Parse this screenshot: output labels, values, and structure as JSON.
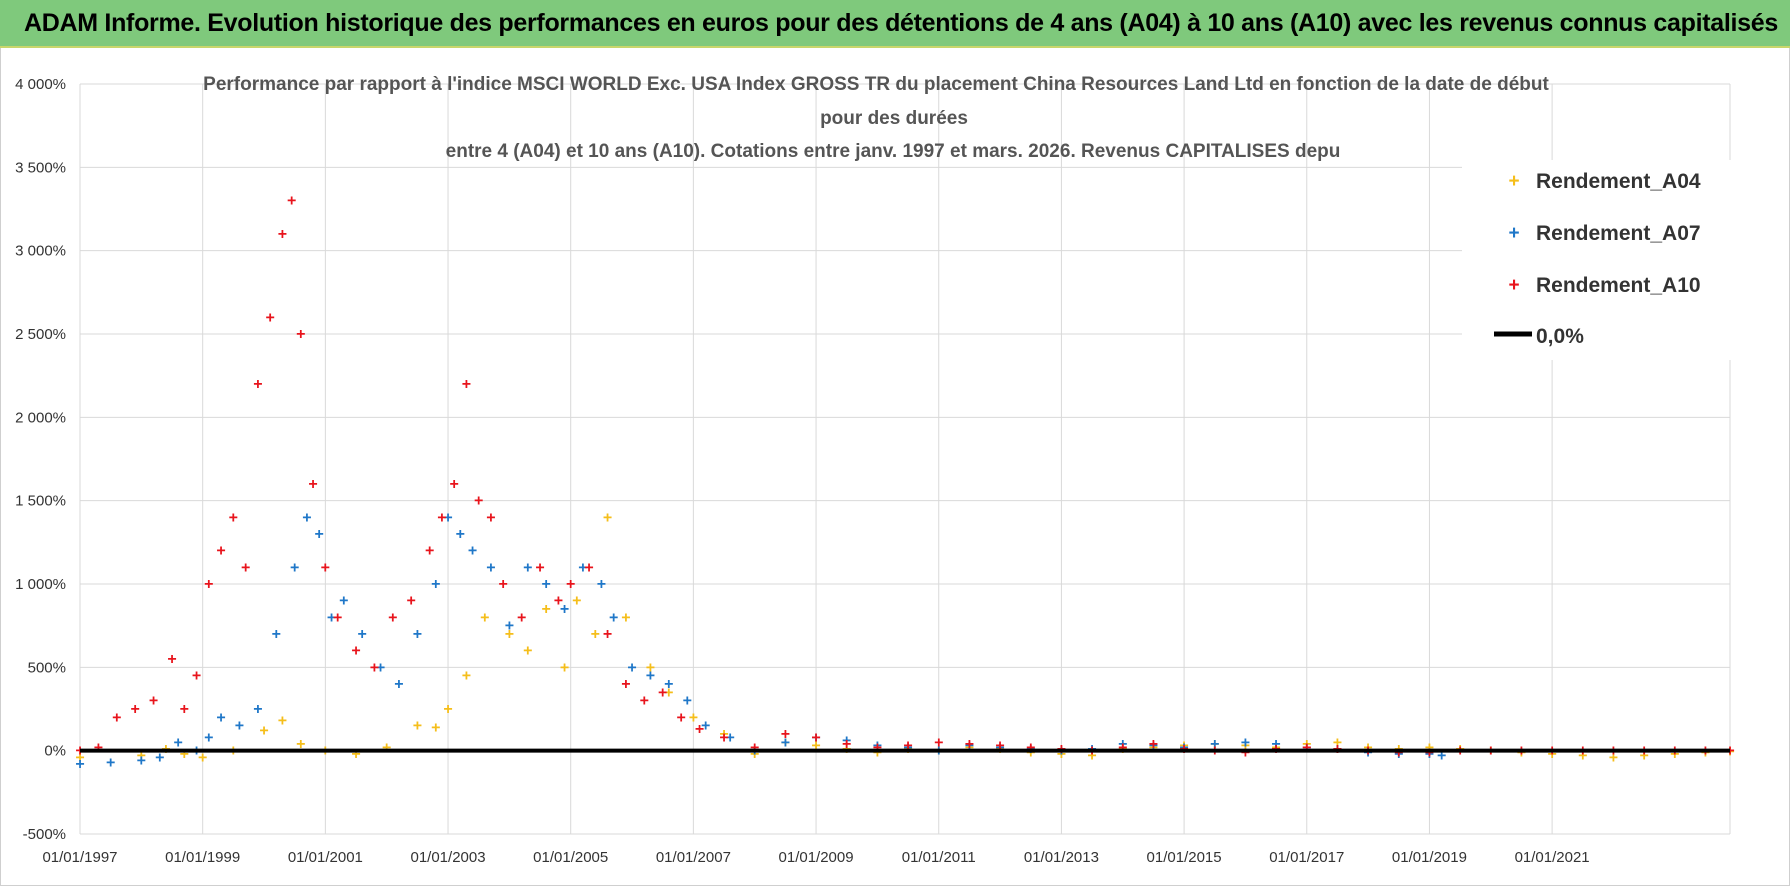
{
  "banner": {
    "title": "ADAM Informe. Evolution historique des performances en euros pour des détentions de 4 ans (A04) à 10 ans (A10) avec les revenus connus capitalisés"
  },
  "chart_data": {
    "type": "scatter",
    "title_lines": [
      "Performance par rapport à l'indice MSCI WORLD Exc. USA Index GROSS TR  du placement China Resources Land Ltd en fonction de la date de début",
      "pour des durées",
      "entre 4 (A04) et 10 ans (A10). Cotations entre janv. 1997 et mars. 2026. Revenus CAPITALISES depu"
    ],
    "x_range": [
      1997.0,
      2023.9
    ],
    "ylim": [
      -500,
      4000
    ],
    "y_ticks": [
      -500,
      0,
      500,
      1000,
      1500,
      2000,
      2500,
      3000,
      3500,
      4000
    ],
    "y_tick_labels": [
      "-500%",
      "0%",
      "500%",
      "1 000%",
      "1 500%",
      "2 000%",
      "2 500%",
      "3 000%",
      "3 500%",
      "4 000%"
    ],
    "x_tick_years": [
      1997,
      1999,
      2001,
      2003,
      2005,
      2007,
      2009,
      2011,
      2013,
      2015,
      2017,
      2019,
      2021
    ],
    "x_tick_labels": [
      "01/01/1997",
      "01/01/1999",
      "01/01/2001",
      "01/01/2003",
      "01/01/2005",
      "01/01/2007",
      "01/01/2009",
      "01/01/2011",
      "01/01/2013",
      "01/01/2015",
      "01/01/2017",
      "01/01/2019",
      "01/01/2021"
    ],
    "grid": true,
    "legend_position": "top-right",
    "series": [
      {
        "name": "Rendement_A04",
        "color": "#f5be1a",
        "x": [
          1997.0,
          1998.0,
          1998.4,
          1998.7,
          1999.0,
          1999.5,
          2000.0,
          2000.3,
          2000.6,
          2001.0,
          2001.5,
          2002.0,
          2002.5,
          2002.8,
          2003.0,
          2003.3,
          2003.6,
          2004.0,
          2004.3,
          2004.6,
          2004.9,
          2005.1,
          2005.4,
          2005.6,
          2005.9,
          2006.3,
          2006.6,
          2007.0,
          2007.5,
          2008.0,
          2008.5,
          2009.0,
          2009.5,
          2010.0,
          2010.5,
          2011.0,
          2011.5,
          2012.0,
          2012.5,
          2013.0,
          2013.5,
          2014.0,
          2014.5,
          2015.0,
          2015.5,
          2016.0,
          2016.5,
          2017.0,
          2017.5,
          2018.0,
          2018.5,
          2019.0,
          2019.5,
          2020.0,
          2020.5,
          2021.0,
          2021.5,
          2022.0,
          2022.5,
          2023.0,
          2023.5,
          2023.9
        ],
        "values": [
          -40,
          -30,
          10,
          -20,
          -40,
          0,
          120,
          180,
          40,
          0,
          -20,
          20,
          150,
          140,
          250,
          450,
          800,
          700,
          600,
          850,
          500,
          900,
          700,
          1400,
          800,
          500,
          350,
          200,
          100,
          -20,
          50,
          30,
          10,
          -10,
          10,
          0,
          20,
          10,
          -10,
          -20,
          -30,
          10,
          20,
          30,
          40,
          30,
          20,
          40,
          50,
          20,
          10,
          20,
          10,
          0,
          -10,
          -20,
          -30,
          -40,
          -30,
          -20,
          -10,
          -5
        ]
      },
      {
        "name": "Rendement_A07",
        "color": "#1f77c8",
        "x": [
          1997.0,
          1997.5,
          1998.0,
          1998.3,
          1998.6,
          1998.9,
          1999.1,
          1999.3,
          1999.6,
          1999.9,
          2000.2,
          2000.5,
          2000.7,
          2000.9,
          2001.1,
          2001.3,
          2001.6,
          2001.9,
          2002.2,
          2002.5,
          2002.8,
          2003.0,
          2003.2,
          2003.4,
          2003.7,
          2004.0,
          2004.3,
          2004.6,
          2004.9,
          2005.2,
          2005.5,
          2005.7,
          2006.0,
          2006.3,
          2006.6,
          2006.9,
          2007.2,
          2007.6,
          2008.0,
          2008.5,
          2009.0,
          2009.5,
          2010.0,
          2010.5,
          2011.0,
          2011.5,
          2012.0,
          2012.5,
          2013.0,
          2013.5,
          2014.0,
          2014.5,
          2015.0,
          2015.5,
          2016.0,
          2016.5,
          2017.0,
          2017.5,
          2018.0,
          2018.5,
          2019.0,
          2019.2
        ],
        "values": [
          -80,
          -70,
          -60,
          -40,
          50,
          0,
          80,
          200,
          150,
          250,
          700,
          1100,
          1400,
          1300,
          800,
          900,
          700,
          500,
          400,
          700,
          1000,
          1400,
          1300,
          1200,
          1100,
          750,
          1100,
          1000,
          850,
          1100,
          1000,
          800,
          500,
          450,
          400,
          300,
          150,
          80,
          0,
          50,
          80,
          60,
          30,
          20,
          0,
          30,
          20,
          10,
          0,
          10,
          40,
          30,
          20,
          40,
          50,
          40,
          20,
          10,
          -10,
          -20,
          -20,
          -30
        ]
      },
      {
        "name": "Rendement_A10",
        "color": "#e8141c",
        "x": [
          1997.0,
          1997.3,
          1997.6,
          1997.9,
          1998.2,
          1998.5,
          1998.7,
          1998.9,
          1999.1,
          1999.3,
          1999.5,
          1999.7,
          1999.9,
          2000.1,
          2000.3,
          2000.45,
          2000.6,
          2000.8,
          2001.0,
          2001.2,
          2001.5,
          2001.8,
          2002.1,
          2002.4,
          2002.7,
          2002.9,
          2003.1,
          2003.3,
          2003.5,
          2003.7,
          2003.9,
          2004.2,
          2004.5,
          2004.8,
          2005.0,
          2005.3,
          2005.6,
          2005.9,
          2006.2,
          2006.5,
          2006.8,
          2007.1,
          2007.5,
          2008.0,
          2008.5,
          2009.0,
          2009.5,
          2010.0,
          2010.5,
          2011.0,
          2011.5,
          2012.0,
          2012.5,
          2013.0,
          2013.5,
          2014.0,
          2014.5,
          2015.0,
          2015.5,
          2016.0,
          2016.5,
          2017.0,
          2017.5,
          2018.0,
          2018.5,
          2019.0,
          2019.5,
          2020.0,
          2020.5,
          2021.0,
          2021.5,
          2022.0,
          2022.5,
          2023.0,
          2023.5,
          2023.9
        ],
        "values": [
          0,
          20,
          200,
          250,
          300,
          550,
          250,
          450,
          1000,
          1200,
          1400,
          1100,
          2200,
          2600,
          3100,
          3300,
          2500,
          1600,
          1100,
          800,
          600,
          500,
          800,
          900,
          1200,
          1400,
          1600,
          2200,
          1500,
          1400,
          1000,
          800,
          1100,
          900,
          1000,
          1100,
          700,
          400,
          300,
          350,
          200,
          130,
          80,
          20,
          100,
          80,
          40,
          20,
          30,
          50,
          40,
          30,
          20,
          10,
          0,
          20,
          40,
          10,
          0,
          -10,
          10,
          20,
          10,
          0,
          -10,
          -10,
          0,
          0,
          0,
          0,
          0,
          0,
          0,
          0,
          0,
          0
        ]
      },
      {
        "name": "0,0%",
        "color": "#000000",
        "x": [
          1997.0,
          2023.9
        ],
        "values": [
          0,
          0
        ]
      }
    ]
  }
}
